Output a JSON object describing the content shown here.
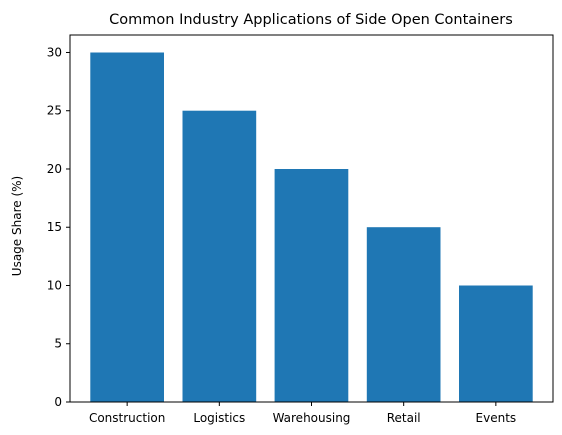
{
  "chart_data": {
    "type": "bar",
    "title": "Common Industry Applications of Side Open Containers",
    "xlabel": "",
    "ylabel": "Usage Share (%)",
    "categories": [
      "Construction",
      "Logistics",
      "Warehousing",
      "Retail",
      "Events"
    ],
    "values": [
      30,
      25,
      20,
      15,
      10
    ],
    "ylim": [
      0,
      31.5
    ],
    "yticks": [
      "0",
      "5",
      "10",
      "15",
      "20",
      "25",
      "30"
    ],
    "bar_color": "#1f77b4",
    "grid": false,
    "legend": "none"
  }
}
